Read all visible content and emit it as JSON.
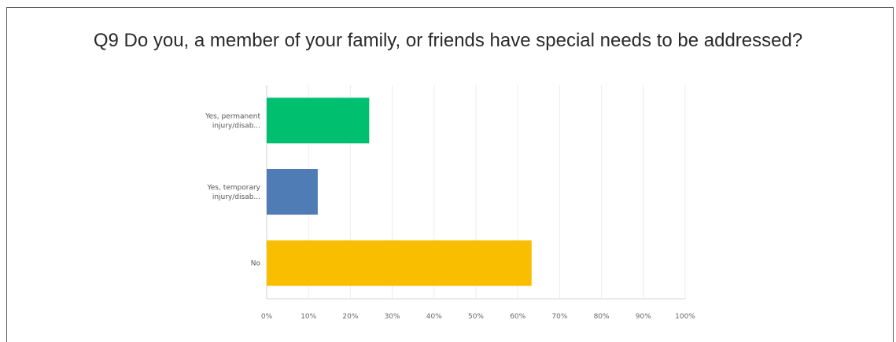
{
  "chart_data": {
    "type": "bar",
    "orientation": "horizontal",
    "title": "Q9 Do you, a member of your family, or friends have special needs to be addressed?",
    "categories": [
      [
        "Yes, permanent",
        "injury/disab..."
      ],
      [
        "Yes, temporary",
        "injury/disab..."
      ],
      [
        "No"
      ]
    ],
    "values": [
      24.5,
      12.2,
      63.3
    ],
    "colors": [
      "#00bf6f",
      "#507cb6",
      "#f9be00"
    ],
    "xlim": [
      0,
      100
    ],
    "x_ticks": [
      "0%",
      "10%",
      "20%",
      "30%",
      "40%",
      "50%",
      "60%",
      "70%",
      "80%",
      "90%",
      "100%"
    ],
    "grid": true
  }
}
